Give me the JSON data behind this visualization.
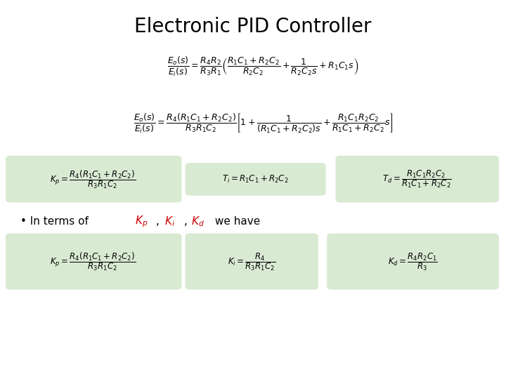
{
  "title": "Electronic PID Controller",
  "title_fontsize": 20,
  "background_color": "#ffffff",
  "green_bg": "#d9ead3",
  "text_color": "#000000",
  "red_color": "#cc0000",
  "formula1": "$\\dfrac{E_o(s)}{E_i(s)} = \\dfrac{R_4 R_2}{R_3 R_1} \\left( \\dfrac{R_1 C_1 + R_2 C_2}{R_2 C_2} + \\dfrac{1}{R_2 C_2 s} + R_1 C_1 s \\right)$",
  "formula2": "$\\dfrac{E_o(s)}{E_i(s)} = \\dfrac{R_4(R_1 C_1 + R_2 C_2)}{R_3 R_1 C_2} \\left[ 1 + \\dfrac{1}{(R_1 C_1 + R_2 C_2)s} + \\dfrac{R_1 C_1 R_2 C_2}{R_1 C_1 + R_2 C_2} s \\right]$",
  "box1_formula": "$K_p = \\dfrac{R_4(R_1 C_1 + R_2 C_2)}{R_3 R_1 C_2}$",
  "box2_formula": "$T_i = R_1 C_1 + R_2 C_2$",
  "box3_formula": "$T_d = \\dfrac{R_1 C_1 R_2 C_2}{R_1 C_1 + R_2 C_2}$",
  "box4_formula": "$K_p = \\dfrac{R_4(R_1 C_1 + R_2 C_2)}{R_3 R_1 C_2}$",
  "box5_formula": "$K_i = \\dfrac{R_4}{R_3 R_1 C_2}$",
  "box6_formula": "$K_d = \\dfrac{R_4 R_2 C_1}{R_3}$"
}
